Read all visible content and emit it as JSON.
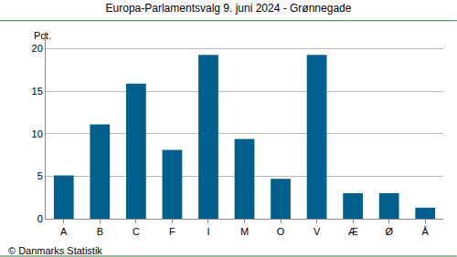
{
  "chart_data": {
    "type": "bar",
    "title": "Europa-Parlamentsvalg 9. juni 2024 - Grønnegade",
    "ylabel": "Pct.",
    "annotations": [
      "© Danmarks Statistik"
    ],
    "categories": [
      "A",
      "B",
      "C",
      "F",
      "I",
      "M",
      "O",
      "V",
      "Æ",
      "Ø",
      "Å"
    ],
    "values": [
      5.1,
      11.1,
      15.9,
      8.1,
      19.3,
      9.4,
      4.7,
      19.3,
      3.0,
      3.0,
      1.3
    ],
    "color": "#005f8c",
    "ylim": [
      0,
      22
    ],
    "yticks": [
      0,
      5,
      10,
      15,
      20
    ],
    "grid": true
  }
}
